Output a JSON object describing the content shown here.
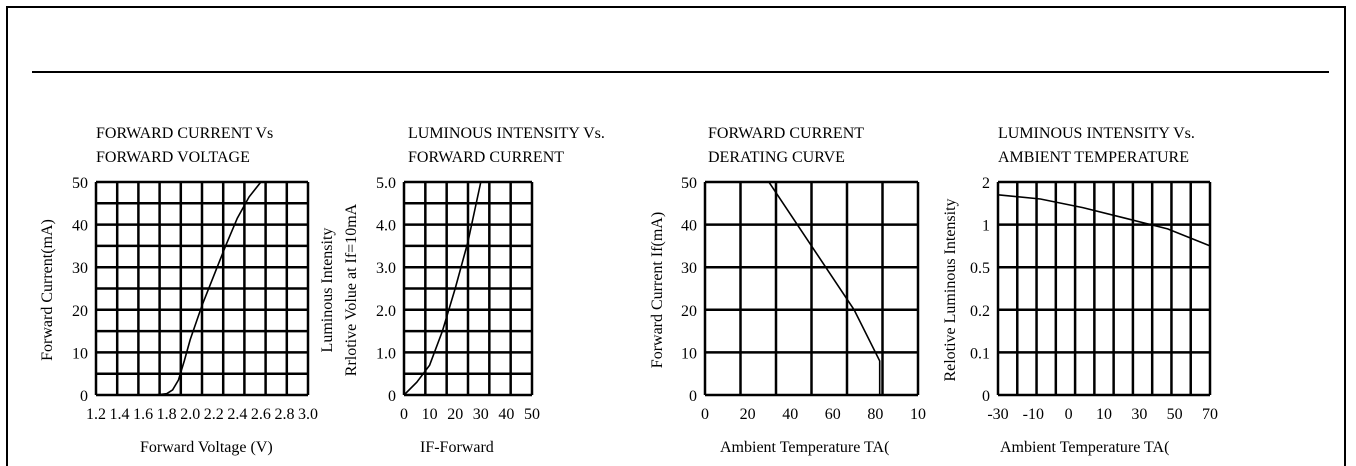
{
  "chart_data": [
    {
      "type": "line",
      "title": [
        "FORWARD CURRENT Vs",
        "FORWARD VOLTAGE"
      ],
      "xlabel": "Forward Voltage (V)",
      "ylabel": "Forward Current(mA)",
      "xlim": [
        1.2,
        3.0
      ],
      "ylim": [
        0,
        50
      ],
      "x_ticks": [
        "1.2",
        "1.4",
        "1.6",
        "1.8",
        "2.0",
        "2.2",
        "2.4",
        "2.6",
        "2.8",
        "3.0"
      ],
      "y_ticks": [
        "0",
        "10",
        "20",
        "30",
        "40",
        "50"
      ],
      "grid": true,
      "series": [
        {
          "x": [
            1.7,
            1.8,
            1.85,
            1.9,
            1.95,
            2.0,
            2.1,
            2.2,
            2.3,
            2.4,
            2.5,
            2.6
          ],
          "y": [
            0,
            0.3,
            1.2,
            3.5,
            8,
            13,
            21,
            28,
            35,
            41.5,
            46.5,
            50
          ]
        }
      ]
    },
    {
      "type": "line",
      "title": [
        "LUMINOUS INTENSITY Vs.",
        "FORWARD CURRENT"
      ],
      "xlabel": "IF-Forward",
      "ylabel": [
        "Luminous Intensity",
        "Rrlotive Volue at If=10mA"
      ],
      "xlim": [
        0,
        50
      ],
      "ylim": [
        0,
        5.0
      ],
      "x_ticks": [
        "0",
        "10",
        "20",
        "30",
        "40",
        "50"
      ],
      "y_ticks": [
        "0",
        "1.0",
        "2.0",
        "3.0",
        "4.0",
        "5.0"
      ],
      "grid": true,
      "series": [
        {
          "x": [
            0,
            5,
            10,
            15,
            20,
            25,
            30
          ],
          "y": [
            0,
            0.3,
            0.7,
            1.5,
            2.5,
            3.6,
            5.0
          ]
        }
      ]
    },
    {
      "type": "line",
      "title": [
        "FORWARD CURRENT",
        "DERATING CURVE"
      ],
      "xlabel": "Ambient Temperature TA(",
      "ylabel": "Forward Current If(mA)",
      "xlim": [
        0,
        100
      ],
      "ylim": [
        0,
        50
      ],
      "x_ticks": [
        "0",
        "20",
        "40",
        "60",
        "80",
        "10"
      ],
      "y_ticks": [
        "0",
        "10",
        "20",
        "30",
        "40",
        "50"
      ],
      "grid": true,
      "series": [
        {
          "x": [
            0,
            30,
            50,
            70,
            82,
            82
          ],
          "y": [
            50,
            50,
            35,
            20,
            8,
            0
          ]
        }
      ]
    },
    {
      "type": "line",
      "title": [
        "LUMINOUS INTENSITY Vs.",
        "AMBIENT TEMPERATURE"
      ],
      "xlabel": "Ambient Temperature TA(",
      "ylabel": "Relotive Luminous Intensity",
      "xlim": [
        -30,
        70
      ],
      "ylim": [
        0,
        2
      ],
      "x_ticks": [
        "-30",
        "-10",
        "0",
        "10",
        "30",
        "50",
        "70"
      ],
      "y_ticks": [
        "0",
        "0.1",
        "0.2",
        "0.5",
        "1",
        "2"
      ],
      "grid": true,
      "series": [
        {
          "x": [
            -30,
            -10,
            10,
            30,
            50,
            70
          ],
          "y": [
            1.7,
            1.6,
            1.4,
            1.15,
            0.95,
            0.75
          ]
        }
      ]
    }
  ]
}
